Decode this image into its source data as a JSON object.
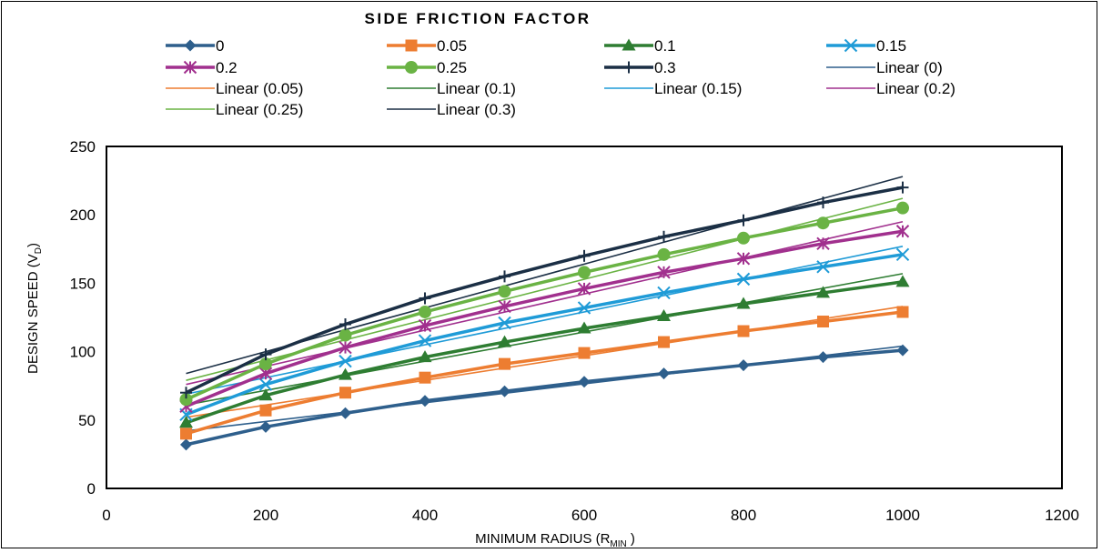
{
  "chart_data": {
    "type": "line",
    "title": "SIDE FRICTION FACTOR",
    "xlabel": {
      "main": "MINIMUM RADIUS (R",
      "sub": "MIN",
      "tail": " )"
    },
    "ylabel": {
      "main": "DESIGN SPEED (V",
      "sub": "D",
      "tail": ")"
    },
    "xlim": [
      0,
      1200
    ],
    "ylim": [
      0,
      250
    ],
    "xticks": [
      "0",
      "200",
      "400",
      "600",
      "800",
      "1000",
      "1200"
    ],
    "yticks": [
      "0",
      "50",
      "100",
      "150",
      "200",
      "250"
    ],
    "grid": false,
    "legend_position": "top",
    "x": [
      100,
      200,
      300,
      400,
      500,
      600,
      700,
      800,
      900,
      1000
    ],
    "series": [
      {
        "name": "0",
        "color": "#2E5F8C",
        "marker": "diamond",
        "values": [
          32,
          45,
          55,
          64,
          71,
          78,
          84,
          90,
          96,
          101
        ]
      },
      {
        "name": "0.05",
        "color": "#ED7D31",
        "marker": "square",
        "values": [
          40,
          57,
          70,
          81,
          91,
          99,
          107,
          115,
          122,
          129
        ]
      },
      {
        "name": "0.1",
        "color": "#2E7D32",
        "marker": "triangle",
        "values": [
          48,
          68,
          83,
          96,
          107,
          117,
          126,
          135,
          143,
          151
        ]
      },
      {
        "name": "0.15",
        "color": "#1F9BD7",
        "marker": "x",
        "values": [
          54,
          76,
          93,
          108,
          121,
          132,
          143,
          153,
          162,
          171
        ]
      },
      {
        "name": "0.2",
        "color": "#A1308E",
        "marker": "asterisk",
        "values": [
          60,
          84,
          103,
          119,
          133,
          146,
          158,
          168,
          179,
          188
        ]
      },
      {
        "name": "0.25",
        "color": "#6AB344",
        "marker": "circle",
        "values": [
          65,
          91,
          112,
          129,
          144,
          158,
          171,
          183,
          194,
          205
        ]
      },
      {
        "name": "0.3",
        "color": "#1B2F45",
        "marker": "plus",
        "values": [
          70,
          98,
          120,
          139,
          155,
          170,
          184,
          196,
          209,
          220
        ]
      }
    ],
    "trendlines": [
      {
        "name": "Linear (0)",
        "color": "#2E5F8C",
        "start": [
          100,
          42
        ],
        "end": [
          1000,
          104
        ]
      },
      {
        "name": "Linear (0.05)",
        "color": "#ED7D31",
        "start": [
          100,
          52
        ],
        "end": [
          1000,
          133
        ]
      },
      {
        "name": "Linear (0.1)",
        "color": "#2E7D32",
        "start": [
          100,
          61
        ],
        "end": [
          1000,
          157
        ]
      },
      {
        "name": "Linear (0.15)",
        "color": "#1F9BD7",
        "start": [
          100,
          69
        ],
        "end": [
          1000,
          177
        ]
      },
      {
        "name": "Linear (0.2)",
        "color": "#A1308E",
        "start": [
          100,
          76
        ],
        "end": [
          1000,
          195
        ]
      },
      {
        "name": "Linear (0.25)",
        "color": "#6AB344",
        "start": [
          100,
          79
        ],
        "end": [
          1000,
          212
        ]
      },
      {
        "name": "Linear (0.3)",
        "color": "#1B2F45",
        "start": [
          100,
          84
        ],
        "end": [
          1000,
          228
        ]
      }
    ]
  }
}
